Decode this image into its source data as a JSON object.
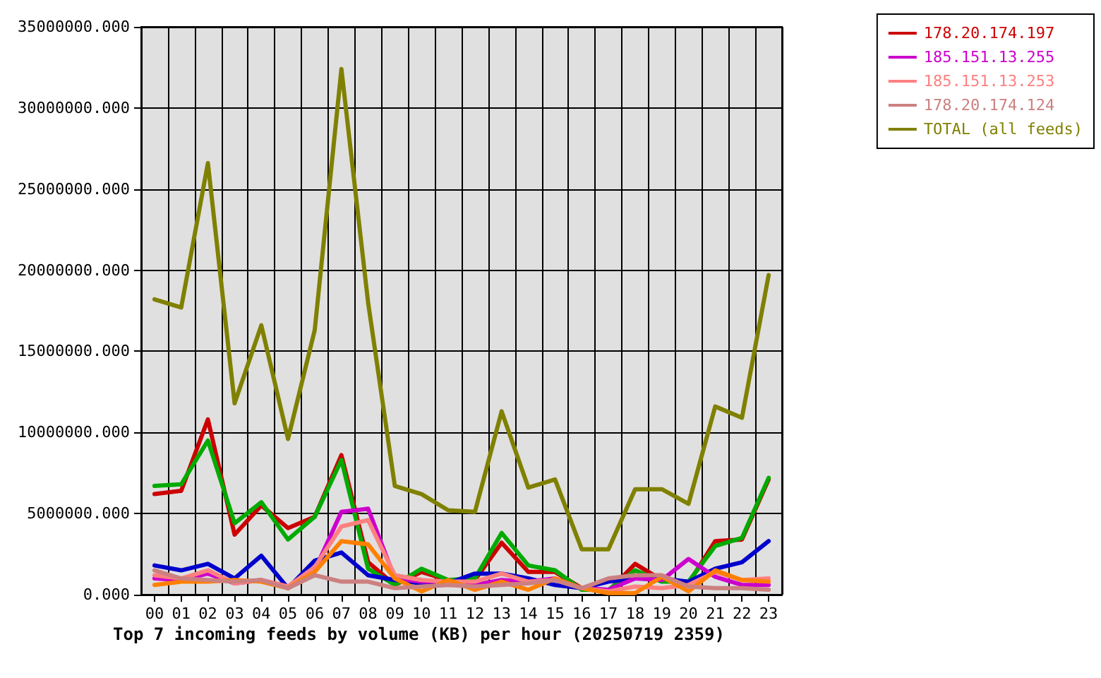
{
  "chart_data": {
    "type": "line",
    "title": "Top 7 incoming feeds by volume (KB) per hour (20250719 2359)",
    "categories": [
      "00",
      "01",
      "02",
      "03",
      "04",
      "05",
      "06",
      "07",
      "08",
      "09",
      "10",
      "11",
      "12",
      "13",
      "14",
      "15",
      "16",
      "17",
      "18",
      "19",
      "20",
      "21",
      "22",
      "23"
    ],
    "ylim": [
      0,
      35000000
    ],
    "yticks": [
      {
        "value": 0,
        "label": "0.000"
      },
      {
        "value": 5000000,
        "label": "5000000.000"
      },
      {
        "value": 10000000,
        "label": "10000000.000"
      },
      {
        "value": 15000000,
        "label": "15000000.000"
      },
      {
        "value": 20000000,
        "label": "20000000.000"
      },
      {
        "value": 25000000,
        "label": "25000000.000"
      },
      {
        "value": 30000000,
        "label": "30000000.000"
      },
      {
        "value": 35000000,
        "label": "35000000.000"
      }
    ],
    "grid": true,
    "legend": "right",
    "marker": "none",
    "line_style": "solid",
    "series": [
      {
        "name": "178.20.174.197",
        "color": "#cc0000",
        "values": [
          6200000,
          6400000,
          10800000,
          3700000,
          5500000,
          4100000,
          4800000,
          8600000,
          2000000,
          600000,
          1400000,
          900000,
          900000,
          3200000,
          1400000,
          1400000,
          400000,
          200000,
          1900000,
          900000,
          700000,
          3300000,
          3400000,
          7100000
        ]
      },
      {
        "color": "#00aa00",
        "values": [
          6700000,
          6800000,
          9500000,
          4400000,
          5700000,
          3400000,
          4800000,
          8300000,
          1600000,
          600000,
          1600000,
          900000,
          1000000,
          3800000,
          1800000,
          1500000,
          300000,
          300000,
          1500000,
          800000,
          800000,
          3000000,
          3500000,
          7200000
        ]
      },
      {
        "color": "#0000cc",
        "values": [
          1800000,
          1500000,
          1900000,
          1000000,
          2400000,
          400000,
          2100000,
          2600000,
          1200000,
          900000,
          700000,
          700000,
          1300000,
          1300000,
          1000000,
          600000,
          400000,
          800000,
          1000000,
          1000000,
          800000,
          1600000,
          2000000,
          3300000
        ]
      },
      {
        "name": "185.151.13.255",
        "color": "#cc00cc",
        "values": [
          1000000,
          900000,
          1300000,
          700000,
          900000,
          500000,
          1500000,
          5100000,
          5300000,
          1000000,
          800000,
          800000,
          600000,
          900000,
          800000,
          1000000,
          400000,
          300000,
          1000000,
          900000,
          2200000,
          1100000,
          600000,
          600000
        ]
      },
      {
        "name": "185.151.13.253",
        "color": "#ff8080",
        "values": [
          1200000,
          1000000,
          1500000,
          700000,
          900000,
          500000,
          1700000,
          4200000,
          4600000,
          1200000,
          900000,
          800000,
          800000,
          1300000,
          800000,
          900000,
          400000,
          200000,
          500000,
          400000,
          600000,
          1400000,
          900000,
          1000000
        ]
      },
      {
        "color": "#ff8000",
        "values": [
          600000,
          800000,
          800000,
          900000,
          800000,
          400000,
          1400000,
          3300000,
          3100000,
          1000000,
          200000,
          900000,
          300000,
          800000,
          300000,
          1000000,
          400000,
          100000,
          100000,
          1100000,
          200000,
          1500000,
          900000,
          800000
        ]
      },
      {
        "name": "178.20.174.124",
        "color": "#cc8080",
        "values": [
          1500000,
          1000000,
          900000,
          800000,
          900000,
          400000,
          1200000,
          800000,
          800000,
          400000,
          500000,
          600000,
          500000,
          600000,
          700000,
          900000,
          400000,
          1000000,
          1200000,
          1200000,
          500000,
          400000,
          400000,
          300000
        ]
      },
      {
        "name": "TOTAL (all feeds)",
        "color": "#808000",
        "values": [
          18200000,
          17700000,
          26600000,
          11800000,
          16600000,
          9600000,
          16300000,
          32400000,
          18000000,
          6700000,
          6200000,
          5200000,
          5100000,
          11300000,
          6600000,
          7100000,
          2800000,
          2800000,
          6500000,
          6500000,
          5600000,
          11600000,
          10900000,
          19700000
        ]
      }
    ]
  }
}
